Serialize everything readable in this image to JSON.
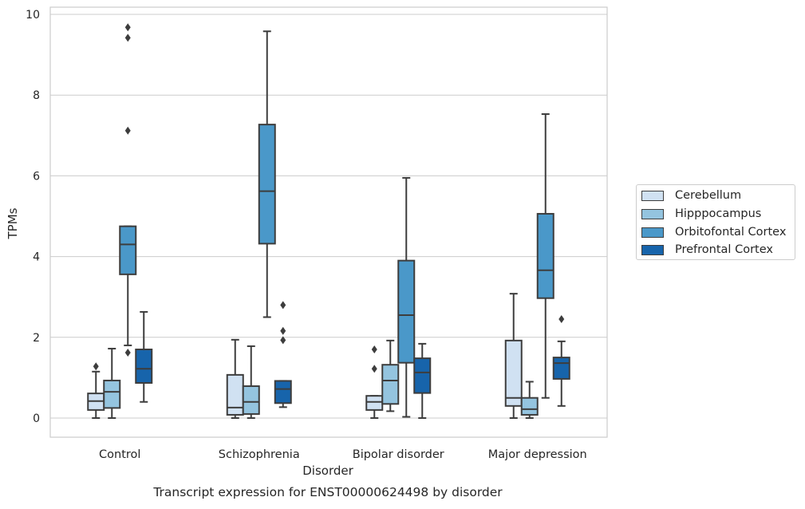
{
  "chart_data": {
    "type": "box",
    "title": "Transcript expression for ENST00000624498 by disorder",
    "xlabel": "Disorder",
    "ylabel": "TPMs",
    "categories": [
      "Control",
      "Schizophrenia",
      "Bipolar disorder",
      "Major depression"
    ],
    "ylim": [
      -0.45,
      10.2
    ],
    "yticks": [
      0,
      2,
      4,
      6,
      8,
      10
    ],
    "grid": "horizontal",
    "legend_position": "right",
    "series": [
      {
        "name": "Cerebellum",
        "color": "#d0e1f2",
        "boxes": [
          {
            "whislo": 0.0,
            "q1": 0.2,
            "med": 0.42,
            "q3": 0.61,
            "whishi": 1.15,
            "fliers": [
              1.28
            ]
          },
          {
            "whislo": 0.0,
            "q1": 0.08,
            "med": 0.26,
            "q3": 1.07,
            "whishi": 1.94,
            "fliers": []
          },
          {
            "whislo": 0.0,
            "q1": 0.2,
            "med": 0.4,
            "q3": 0.55,
            "whishi": 0.55,
            "fliers": [
              1.22,
              1.7
            ]
          },
          {
            "whislo": 0.0,
            "q1": 0.3,
            "med": 0.5,
            "q3": 1.92,
            "whishi": 3.08,
            "fliers": []
          }
        ]
      },
      {
        "name": "Hipppocampus",
        "color": "#94c4df",
        "boxes": [
          {
            "whislo": 0.0,
            "q1": 0.25,
            "med": 0.65,
            "q3": 0.93,
            "whishi": 1.72,
            "fliers": []
          },
          {
            "whislo": 0.0,
            "q1": 0.1,
            "med": 0.4,
            "q3": 0.79,
            "whishi": 1.78,
            "fliers": []
          },
          {
            "whislo": 0.17,
            "q1": 0.35,
            "med": 0.93,
            "q3": 1.32,
            "whishi": 1.92,
            "fliers": []
          },
          {
            "whislo": 0.0,
            "q1": 0.08,
            "med": 0.22,
            "q3": 0.5,
            "whishi": 0.9,
            "fliers": []
          }
        ]
      },
      {
        "name": "Orbitofontal Cortex",
        "color": "#4a98c9",
        "boxes": [
          {
            "whislo": 1.8,
            "q1": 3.56,
            "med": 4.3,
            "q3": 4.75,
            "whishi": 4.75,
            "fliers": [
              1.62,
              7.12,
              9.42,
              9.68
            ]
          },
          {
            "whislo": 2.5,
            "q1": 4.32,
            "med": 5.62,
            "q3": 7.27,
            "whishi": 9.58,
            "fliers": []
          },
          {
            "whislo": 0.03,
            "q1": 1.37,
            "med": 2.55,
            "q3": 3.9,
            "whishi": 5.95,
            "fliers": []
          },
          {
            "whislo": 0.5,
            "q1": 2.97,
            "med": 3.66,
            "q3": 5.06,
            "whishi": 7.53,
            "fliers": []
          }
        ]
      },
      {
        "name": "Prefrontal Cortex",
        "color": "#1764ab",
        "boxes": [
          {
            "whislo": 0.4,
            "q1": 0.87,
            "med": 1.22,
            "q3": 1.7,
            "whishi": 2.63,
            "fliers": []
          },
          {
            "whislo": 0.27,
            "q1": 0.37,
            "med": 0.72,
            "q3": 0.92,
            "whishi": 0.92,
            "fliers": [
              1.93,
              2.16,
              2.8
            ]
          },
          {
            "whislo": 0.0,
            "q1": 0.62,
            "med": 1.13,
            "q3": 1.48,
            "whishi": 1.84,
            "fliers": []
          },
          {
            "whislo": 0.3,
            "q1": 0.97,
            "med": 1.36,
            "q3": 1.5,
            "whishi": 1.9,
            "fliers": [
              2.45
            ]
          }
        ]
      }
    ]
  }
}
